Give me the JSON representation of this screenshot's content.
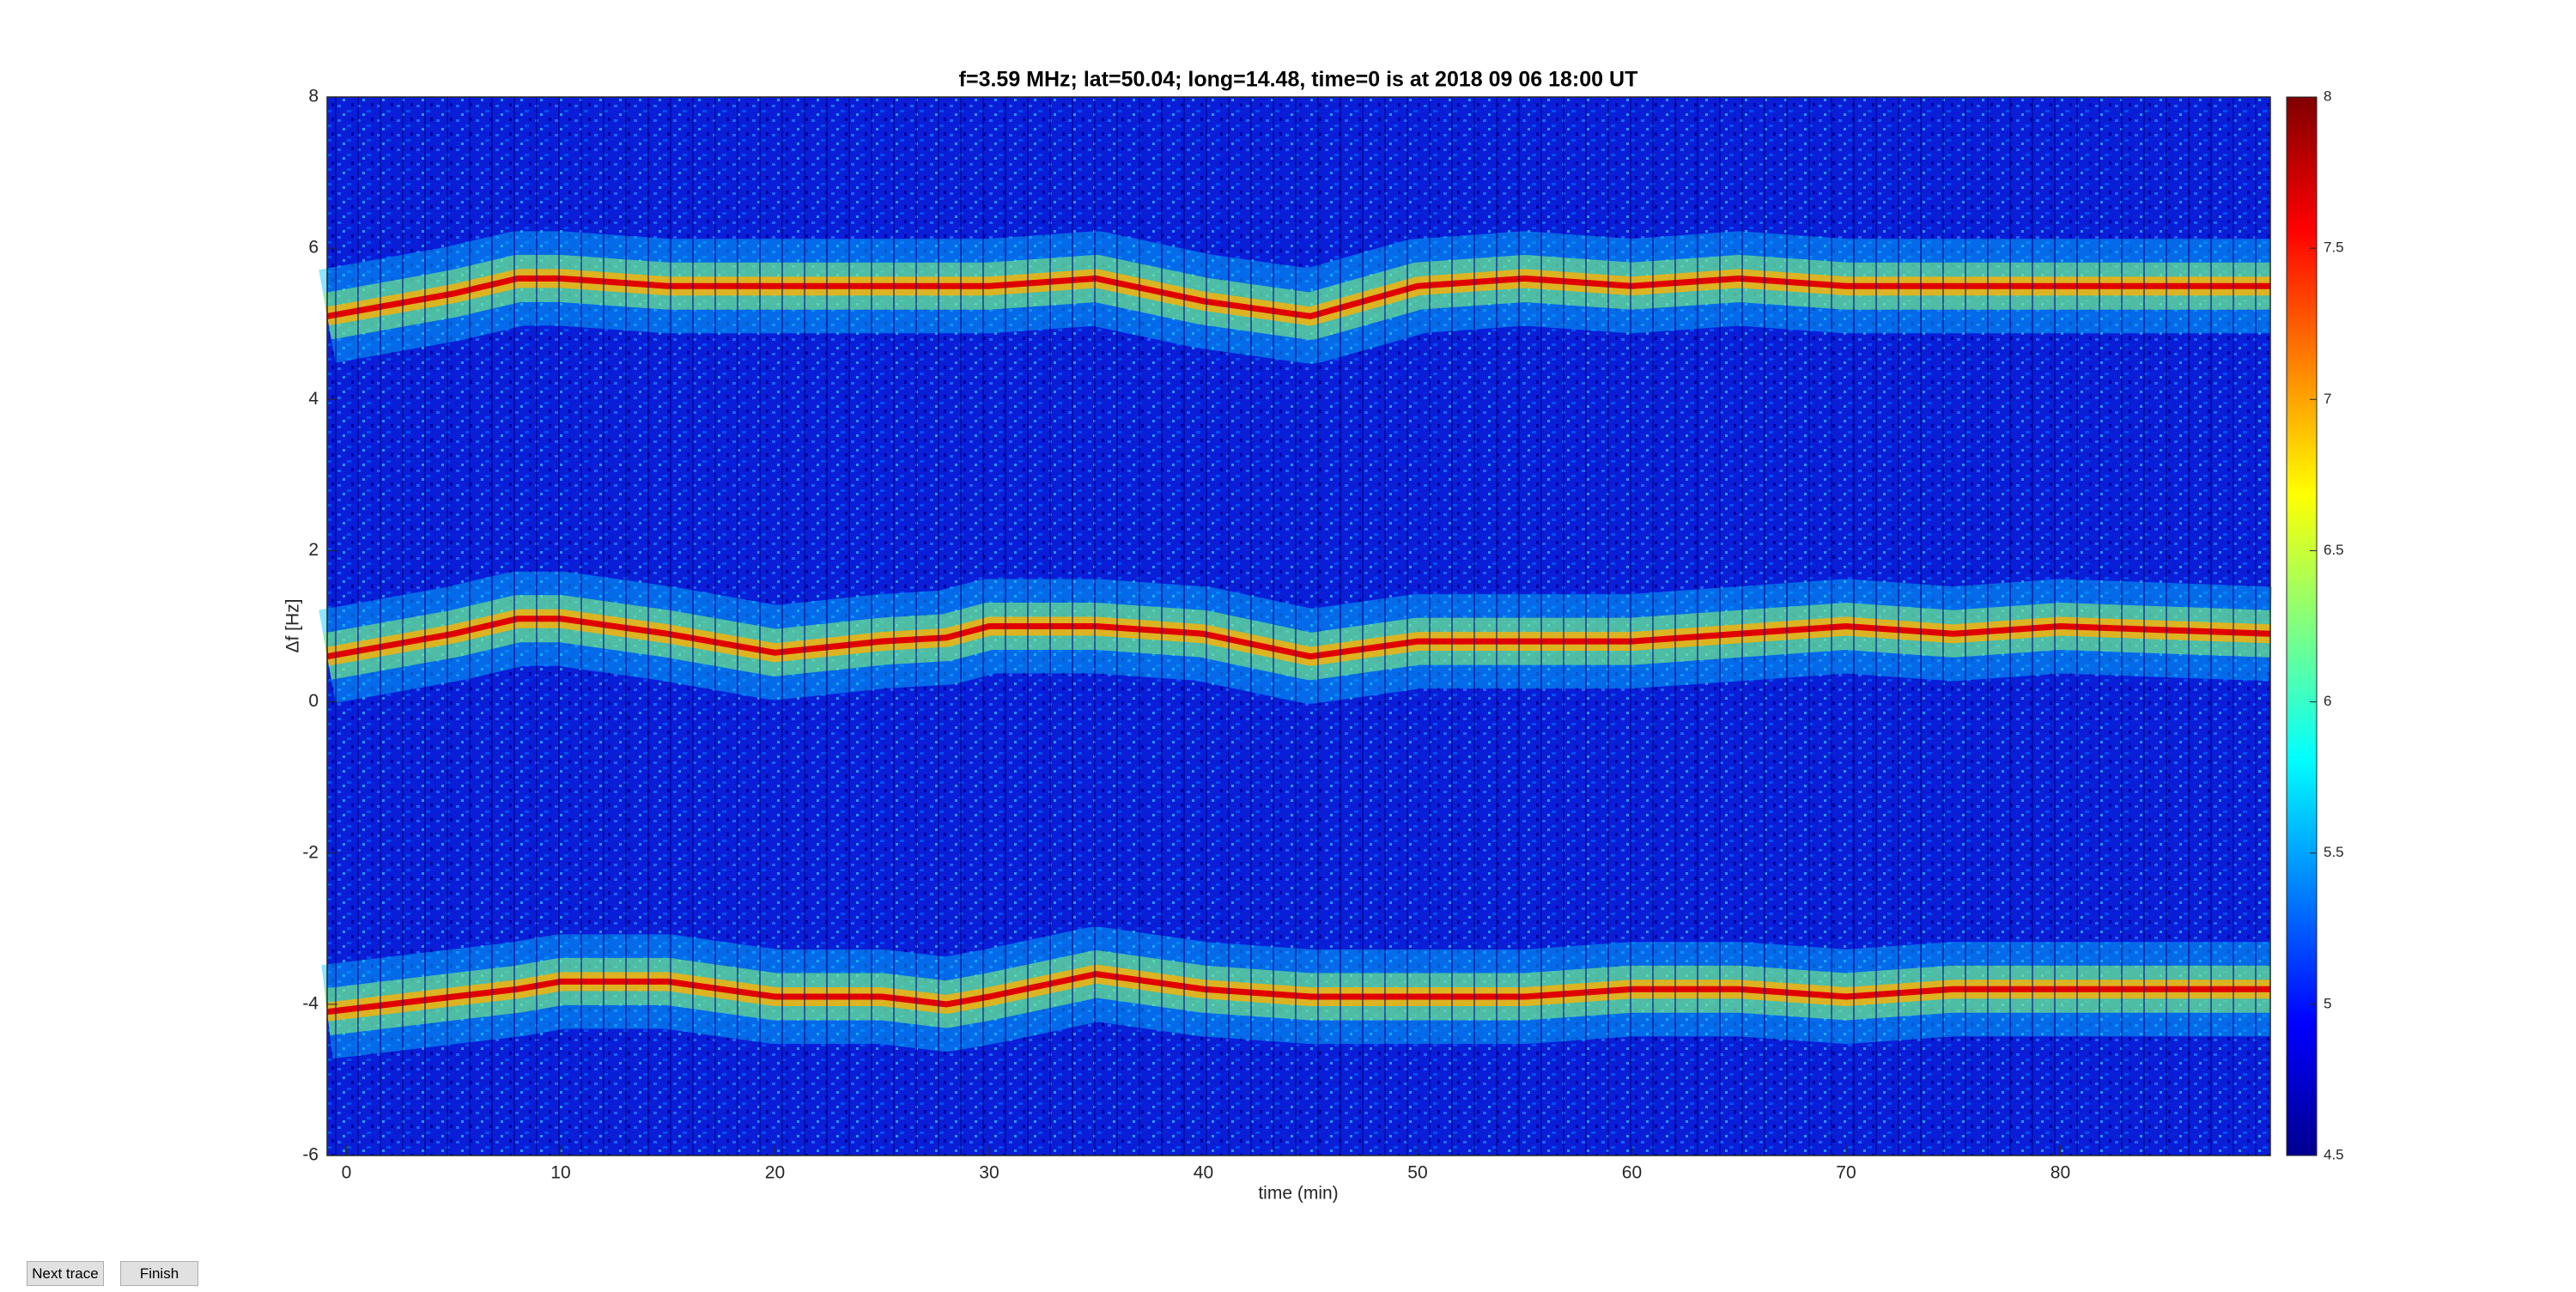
{
  "chart_data": {
    "type": "spectrogram",
    "title": "f=3.59 MHz;  lat=50.04; long=14.48, time=0 is at 2018 09 06 18:00 UT",
    "xlabel": "time (min)",
    "ylabel": "Δf [Hz]",
    "x": [
      -0.9,
      5,
      8,
      10,
      15,
      20,
      25,
      28,
      30,
      35,
      40,
      45,
      50,
      55,
      60,
      65,
      70,
      75,
      80,
      89.8
    ],
    "series": [
      {
        "values": [
          5.1,
          5.4,
          5.6,
          5.6,
          5.5,
          5.5,
          5.5,
          5.5,
          5.5,
          5.6,
          5.3,
          5.1,
          5.5,
          5.6,
          5.5,
          5.6,
          5.5,
          5.5,
          5.5,
          5.5
        ]
      },
      {
        "values": [
          0.6,
          0.9,
          1.1,
          1.1,
          0.9,
          0.65,
          0.8,
          0.85,
          1.0,
          1.0,
          0.9,
          0.6,
          0.8,
          0.8,
          0.8,
          0.9,
          1.0,
          0.9,
          1.0,
          0.9
        ]
      },
      {
        "values": [
          -4.1,
          -3.9,
          -3.8,
          -3.7,
          -3.7,
          -3.9,
          -3.9,
          -4.0,
          -3.9,
          -3.6,
          -3.8,
          -3.9,
          -3.9,
          -3.9,
          -3.8,
          -3.8,
          -3.9,
          -3.8,
          -3.8,
          -3.8
        ]
      }
    ],
    "xlim": [
      -0.9,
      89.8
    ],
    "xticks": [
      0,
      10,
      20,
      30,
      40,
      50,
      60,
      70,
      80
    ],
    "ylim": [
      -6,
      8
    ],
    "yticks": [
      -6,
      -4,
      -2,
      0,
      2,
      4,
      6,
      8
    ],
    "colormap": "jet",
    "colorbar": {
      "lim": [
        4.5,
        8
      ],
      "ticks": [
        4.5,
        5,
        5.5,
        6,
        6.5,
        7,
        7.5,
        8
      ]
    }
  },
  "controls": {
    "buttons": [
      "Next trace",
      "Finish"
    ]
  }
}
